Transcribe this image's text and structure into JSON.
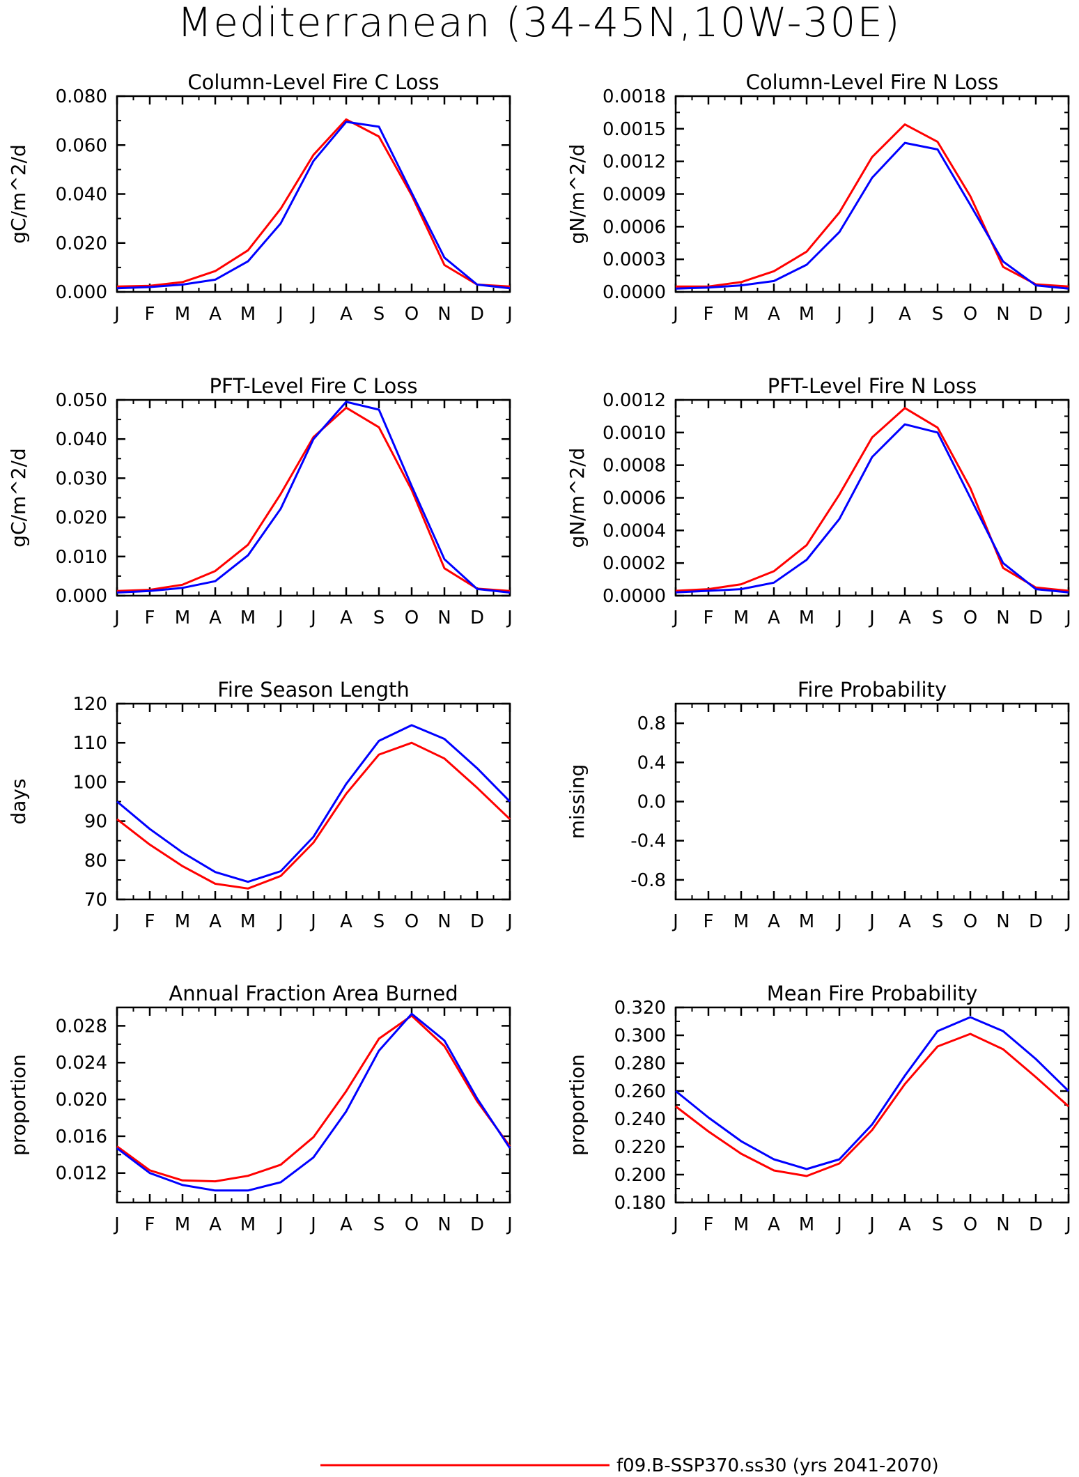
{
  "title": "Mediterranean (34-45N,10W-30E)",
  "colors": {
    "series_1": "#ff0000",
    "series_2": "#0000ff",
    "axis": "#000000"
  },
  "legend": {
    "entries": [
      {
        "label": "f09.B-SSP370.ss30 (yrs 2041-2070)",
        "color": "#ff0000"
      }
    ]
  },
  "chart_data": [
    {
      "type": "line",
      "title": "Column-Level Fire C Loss",
      "ylabel": "gC/m^2/d",
      "ylim": [
        0,
        0.08
      ],
      "yticks": [
        "0.000",
        "0.020",
        "0.040",
        "0.060",
        "0.080"
      ],
      "categories": [
        "J",
        "F",
        "M",
        "A",
        "M",
        "J",
        "J",
        "A",
        "S",
        "O",
        "N",
        "D",
        "J"
      ],
      "series": [
        {
          "values": [
            0.0022,
            0.0025,
            0.004,
            0.0085,
            0.017,
            0.034,
            0.056,
            0.0705,
            0.0635,
            0.0395,
            0.011,
            0.003,
            0.0022
          ],
          "color": "#ff0000"
        },
        {
          "values": [
            0.0015,
            0.002,
            0.003,
            0.005,
            0.0125,
            0.028,
            0.0535,
            0.0695,
            0.0675,
            0.0405,
            0.014,
            0.003,
            0.0015
          ],
          "color": "#0000ff"
        }
      ]
    },
    {
      "type": "line",
      "title": "Column-Level Fire N Loss",
      "ylabel": "gN/m^2/d",
      "ylim": [
        0,
        0.0018
      ],
      "yticks": [
        "0.0000",
        "0.0003",
        "0.0006",
        "0.0009",
        "0.0012",
        "0.0015",
        "0.0018"
      ],
      "categories": [
        "J",
        "F",
        "M",
        "A",
        "M",
        "J",
        "J",
        "A",
        "S",
        "O",
        "N",
        "D",
        "J"
      ],
      "series": [
        {
          "values": [
            5e-05,
            5e-05,
            9e-05,
            0.00019,
            0.00037,
            0.00073,
            0.00124,
            0.00154,
            0.00138,
            0.00088,
            0.00023,
            7e-05,
            5e-05
          ],
          "color": "#ff0000"
        },
        {
          "values": [
            3e-05,
            4e-05,
            6e-05,
            0.0001,
            0.00025,
            0.00055,
            0.00105,
            0.00137,
            0.00131,
            0.0008,
            0.00028,
            6e-05,
            3e-05
          ],
          "color": "#0000ff"
        }
      ]
    },
    {
      "type": "line",
      "title": "PFT-Level Fire C Loss",
      "ylabel": "gC/m^2/d",
      "ylim": [
        0,
        0.05
      ],
      "yticks": [
        "0.000",
        "0.010",
        "0.020",
        "0.030",
        "0.040",
        "0.050"
      ],
      "categories": [
        "J",
        "F",
        "M",
        "A",
        "M",
        "J",
        "J",
        "A",
        "S",
        "O",
        "N",
        "D",
        "J"
      ],
      "series": [
        {
          "values": [
            0.0012,
            0.0015,
            0.0028,
            0.0063,
            0.013,
            0.026,
            0.0405,
            0.048,
            0.043,
            0.027,
            0.007,
            0.0018,
            0.0012
          ],
          "color": "#ff0000"
        },
        {
          "values": [
            0.0008,
            0.0012,
            0.002,
            0.0037,
            0.0103,
            0.0222,
            0.04,
            0.0495,
            0.0475,
            0.028,
            0.0093,
            0.0017,
            0.0008
          ],
          "color": "#0000ff"
        }
      ]
    },
    {
      "type": "line",
      "title": "PFT-Level Fire N Loss",
      "ylabel": "gN/m^2/d",
      "ylim": [
        0,
        0.0012
      ],
      "yticks": [
        "0.0000",
        "0.0002",
        "0.0004",
        "0.0006",
        "0.0008",
        "0.0010",
        "0.0012"
      ],
      "categories": [
        "J",
        "F",
        "M",
        "A",
        "M",
        "J",
        "J",
        "A",
        "S",
        "O",
        "N",
        "D",
        "J"
      ],
      "series": [
        {
          "values": [
            3e-05,
            4e-05,
            7e-05,
            0.00015,
            0.00031,
            0.00062,
            0.00097,
            0.00115,
            0.00103,
            0.00066,
            0.00017,
            5e-05,
            3e-05
          ],
          "color": "#ff0000"
        },
        {
          "values": [
            2e-05,
            3e-05,
            4e-05,
            8e-05,
            0.00022,
            0.00047,
            0.00085,
            0.00105,
            0.001,
            0.0006,
            0.0002,
            4e-05,
            2e-05
          ],
          "color": "#0000ff"
        }
      ]
    },
    {
      "type": "line",
      "title": "Fire Season Length",
      "ylabel": "days",
      "ylim": [
        70,
        120
      ],
      "yticks": [
        "70",
        "80",
        "90",
        "100",
        "110",
        "120"
      ],
      "categories": [
        "J",
        "F",
        "M",
        "A",
        "M",
        "J",
        "J",
        "A",
        "S",
        "O",
        "N",
        "D",
        "J"
      ],
      "series": [
        {
          "values": [
            90.5,
            84,
            78.5,
            74,
            72.8,
            76,
            84.5,
            97,
            107,
            110,
            106,
            98.5,
            90.5
          ],
          "color": "#ff0000"
        },
        {
          "values": [
            95,
            88,
            82,
            77,
            74.5,
            77.2,
            86,
            99.5,
            110.5,
            114.5,
            111,
            103.5,
            95
          ],
          "color": "#0000ff"
        }
      ]
    },
    {
      "type": "line",
      "title": "Fire Probability",
      "ylabel": "missing",
      "ylim": [
        -1,
        1
      ],
      "yticks": [
        "-0.8",
        "-0.4",
        "0.0",
        "0.4",
        "0.8"
      ],
      "categories": [
        "J",
        "F",
        "M",
        "A",
        "M",
        "J",
        "J",
        "A",
        "S",
        "O",
        "N",
        "D",
        "J"
      ],
      "series": []
    },
    {
      "type": "line",
      "title": "Annual Fraction Area Burned",
      "ylabel": "proportion",
      "ylim": [
        0.0088,
        0.03
      ],
      "yticks": [
        "0.012",
        "0.016",
        "0.020",
        "0.024",
        "0.028"
      ],
      "categories": [
        "J",
        "F",
        "M",
        "A",
        "M",
        "J",
        "J",
        "A",
        "S",
        "O",
        "N",
        "D",
        "J"
      ],
      "series": [
        {
          "values": [
            0.0149,
            0.0123,
            0.0112,
            0.0111,
            0.0117,
            0.0129,
            0.0159,
            0.0209,
            0.0266,
            0.0291,
            0.0258,
            0.0198,
            0.0149
          ],
          "color": "#ff0000"
        },
        {
          "values": [
            0.0147,
            0.012,
            0.0107,
            0.0101,
            0.0101,
            0.011,
            0.0137,
            0.0187,
            0.0253,
            0.0293,
            0.0264,
            0.0201,
            0.0147
          ],
          "color": "#0000ff"
        }
      ]
    },
    {
      "type": "line",
      "title": "Mean Fire Probability",
      "ylabel": "proportion",
      "ylim": [
        0.18,
        0.32
      ],
      "yticks": [
        "0.180",
        "0.200",
        "0.220",
        "0.240",
        "0.260",
        "0.280",
        "0.300",
        "0.320"
      ],
      "categories": [
        "J",
        "F",
        "M",
        "A",
        "M",
        "J",
        "J",
        "A",
        "S",
        "O",
        "N",
        "D",
        "J"
      ],
      "series": [
        {
          "values": [
            0.249,
            0.231,
            0.215,
            0.203,
            0.199,
            0.208,
            0.232,
            0.265,
            0.292,
            0.301,
            0.29,
            0.27,
            0.249
          ],
          "color": "#ff0000"
        },
        {
          "values": [
            0.26,
            0.241,
            0.224,
            0.211,
            0.204,
            0.211,
            0.236,
            0.271,
            0.303,
            0.313,
            0.303,
            0.283,
            0.26
          ],
          "color": "#0000ff"
        }
      ]
    }
  ]
}
